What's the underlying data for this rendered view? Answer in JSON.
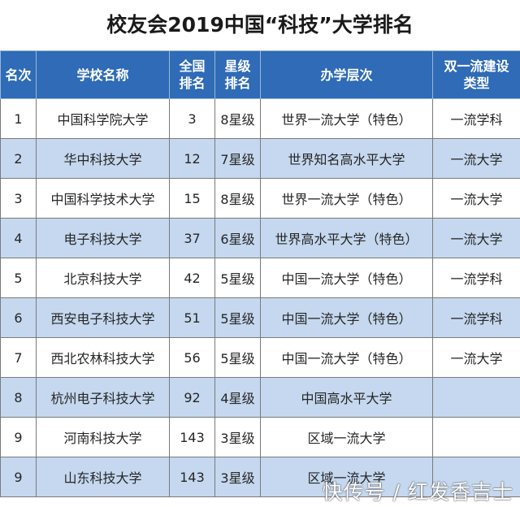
{
  "title": "校友会2019中国“科技”大学排名",
  "headers": {
    "rank": "名次",
    "school": "学校名称",
    "national_rank_line1": "全国",
    "national_rank_line2": "排名",
    "star_line1": "星级",
    "star_line2": "排名",
    "level": "办学层次",
    "type_line1": "双一流建设",
    "type_line2": "类型"
  },
  "rows": [
    {
      "rank": "1",
      "school": "中国科学院大学",
      "national": "3",
      "star": "8星级",
      "level": "世界一流大学（特色）",
      "type": "一流学科"
    },
    {
      "rank": "2",
      "school": "华中科技大学",
      "national": "12",
      "star": "7星级",
      "level": "世界知名高水平大学",
      "type": "一流大学"
    },
    {
      "rank": "3",
      "school": "中国科学技术大学",
      "national": "15",
      "star": "8星级",
      "level": "世界一流大学（特色）",
      "type": "一流大学"
    },
    {
      "rank": "4",
      "school": "电子科技大学",
      "national": "37",
      "star": "6星级",
      "level": "世界高水平大学（特色）",
      "type": "一流大学"
    },
    {
      "rank": "5",
      "school": "北京科技大学",
      "national": "42",
      "star": "5星级",
      "level": "中国一流大学（特色）",
      "type": "一流学科"
    },
    {
      "rank": "6",
      "school": "西安电子科技大学",
      "national": "51",
      "star": "5星级",
      "level": "中国一流大学（特色）",
      "type": "一流学科"
    },
    {
      "rank": "7",
      "school": "西北农林科技大学",
      "national": "56",
      "star": "5星级",
      "level": "中国一流大学（特色）",
      "type": "一流大学"
    },
    {
      "rank": "8",
      "school": "杭州电子科技大学",
      "national": "92",
      "star": "4星级",
      "level": "中国高水平大学",
      "type": ""
    },
    {
      "rank": "9",
      "school": "河南科技大学",
      "national": "143",
      "star": "3星级",
      "level": "区域一流大学",
      "type": ""
    },
    {
      "rank": "9",
      "school": "山东科技大学",
      "national": "143",
      "star": "3星级",
      "level": "区域一流大学",
      "type": ""
    }
  ],
  "watermark": "快传号 / 红发香吉士"
}
